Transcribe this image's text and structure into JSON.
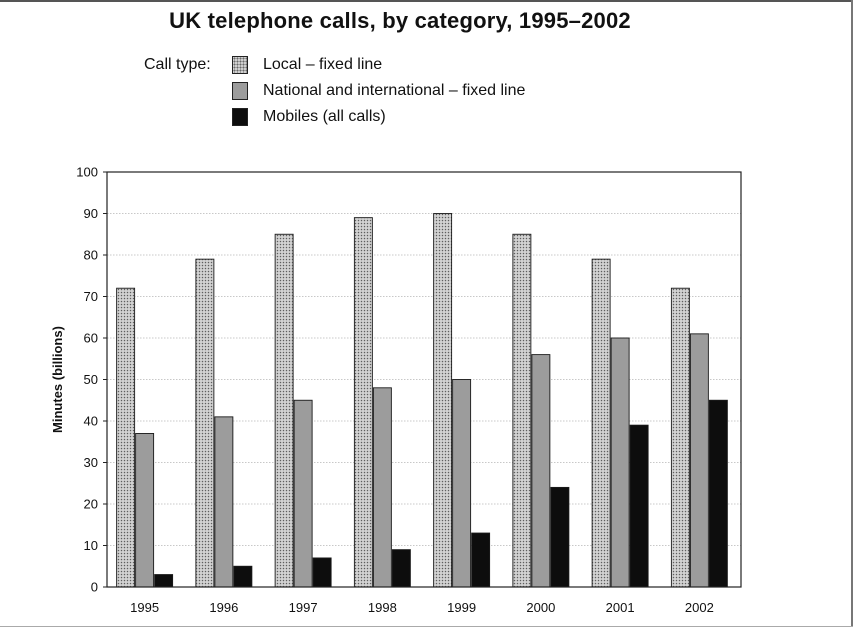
{
  "page": {
    "title": "UK telephone calls, by category, 1995–2002"
  },
  "legend": {
    "heading": "Call type:",
    "items": [
      {
        "label": "Local – fixed line",
        "key": "local"
      },
      {
        "label": "National and international – fixed line",
        "key": "national"
      },
      {
        "label": "Mobiles (all calls)",
        "key": "mobile"
      }
    ]
  },
  "chart_data": {
    "type": "bar",
    "title": "UK telephone calls, by category, 1995–2002",
    "xlabel": "",
    "ylabel": "Minutes (billions)",
    "ylim": [
      0,
      100
    ],
    "yticks": [
      0,
      10,
      20,
      30,
      40,
      50,
      60,
      70,
      80,
      90,
      100
    ],
    "grid": true,
    "legend_position": "top-left",
    "categories": [
      "1995",
      "1996",
      "1997",
      "1998",
      "1999",
      "2000",
      "2001",
      "2002"
    ],
    "series": [
      {
        "name": "Local – fixed line",
        "key": "local",
        "color": "#cfcfcf",
        "values": [
          72,
          79,
          85,
          89,
          90,
          85,
          79,
          72
        ]
      },
      {
        "name": "National and international – fixed line",
        "key": "national",
        "color": "#9c9c9c",
        "values": [
          37,
          41,
          45,
          48,
          50,
          56,
          60,
          61
        ]
      },
      {
        "name": "Mobiles (all calls)",
        "key": "mobile",
        "color": "#0d0d0d",
        "values": [
          3,
          5,
          7,
          9,
          13,
          24,
          39,
          45
        ]
      }
    ]
  }
}
